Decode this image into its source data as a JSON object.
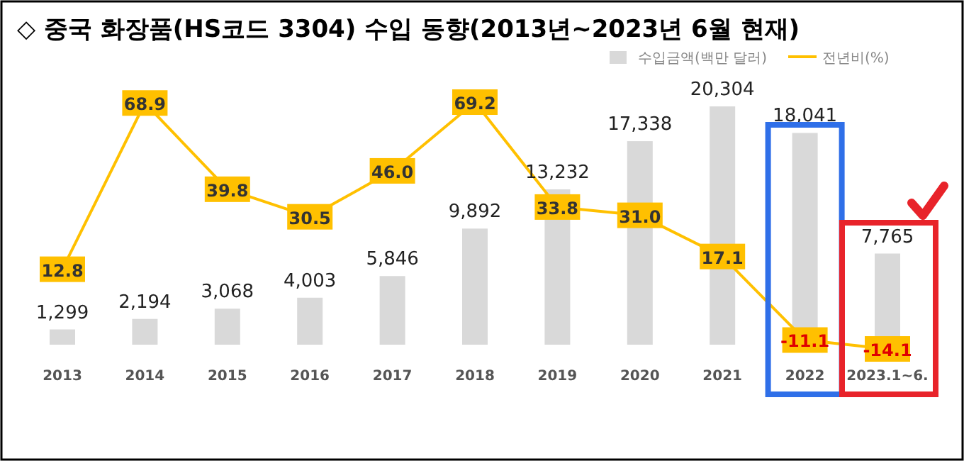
{
  "chart_data": {
    "type": "bar",
    "title": "◇ 중국 화장품(HS코드 3304) 수입 동향(2013년~2023년 6월 현재)",
    "categories": [
      "2013",
      "2014",
      "2015",
      "2016",
      "2017",
      "2018",
      "2019",
      "2020",
      "2021",
      "2022",
      "2023.1~6."
    ],
    "series": [
      {
        "name": "수입금액(백만 달러)",
        "color": "#d9d9d9",
        "values": [
          1299,
          2194,
          3068,
          4003,
          5846,
          9892,
          13232,
          17338,
          20304,
          18041,
          7765
        ],
        "value_labels": [
          "1,299",
          "2,194",
          "3,068",
          "4,003",
          "5,846",
          "9,892",
          "13,232",
          "17,338",
          "20,304",
          "18,041",
          "7,765"
        ]
      },
      {
        "name": "전년비(%)",
        "type": "line",
        "axis": "y2",
        "marker": "square",
        "color": "#ffc000",
        "values": [
          12.8,
          68.9,
          39.8,
          30.5,
          46.0,
          69.2,
          33.8,
          31.0,
          17.1,
          -11.1,
          -14.1
        ],
        "value_labels": [
          "12.8",
          "68.9",
          "39.8",
          "30.5",
          "46.0",
          "69.2",
          "33.8",
          "31.0",
          "17.1",
          "-11.1",
          "-14.1"
        ]
      }
    ],
    "legend": "top right"
  }
}
